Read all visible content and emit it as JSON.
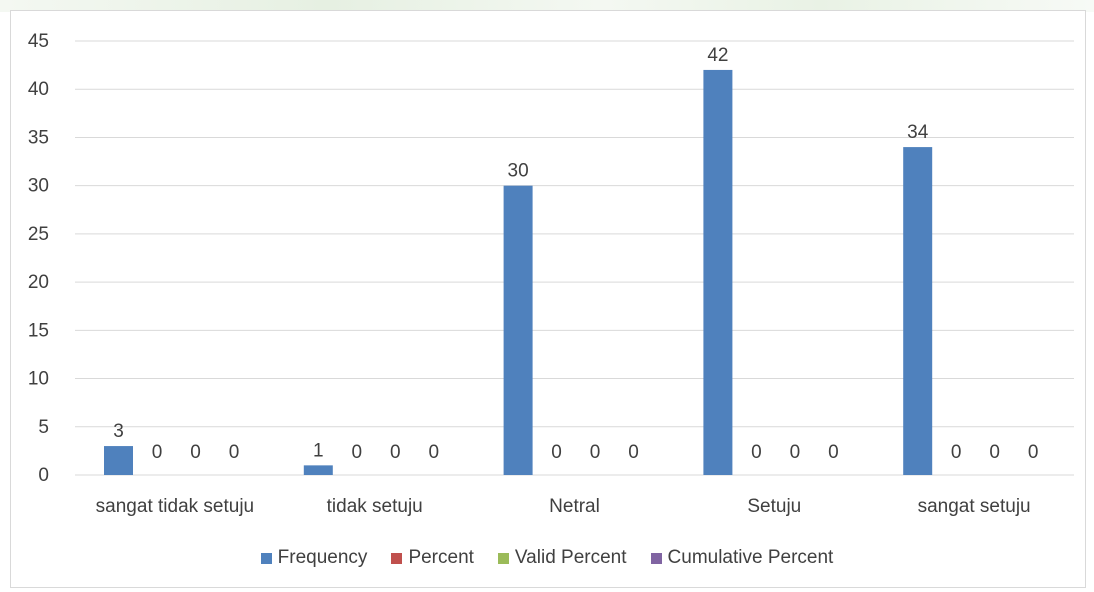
{
  "chart_data": {
    "type": "bar",
    "title": "",
    "xlabel": "",
    "ylabel": "",
    "ylim": [
      0,
      45
    ],
    "ytick_step": 5,
    "grid": true,
    "legend_position": "bottom",
    "categories": [
      "sangat tidak setuju",
      "tidak setuju",
      "Netral",
      "Setuju",
      "sangat setuju"
    ],
    "series": [
      {
        "name": "Frequency",
        "color": "#4f81bd",
        "values": [
          3,
          1,
          30,
          42,
          34
        ]
      },
      {
        "name": "Percent",
        "color": "#c0504d",
        "values": [
          0,
          0,
          0,
          0,
          0
        ]
      },
      {
        "name": "Valid Percent",
        "color": "#9bbb59",
        "values": [
          0,
          0,
          0,
          0,
          0
        ]
      },
      {
        "name": "Cumulative Percent",
        "color": "#8064a2",
        "values": [
          0,
          0,
          0,
          0,
          0
        ]
      }
    ],
    "data_labels": true
  }
}
